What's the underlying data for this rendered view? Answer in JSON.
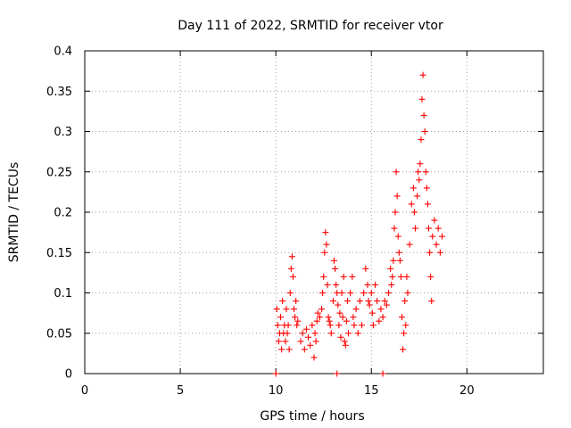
{
  "chart_data": {
    "type": "scatter",
    "title": "Day 111 of 2022, SRMTID for receiver vtor",
    "xlabel": "GPS time / hours",
    "ylabel": "SRMTID / TECUs",
    "xlim": [
      0,
      24
    ],
    "ylim": [
      0,
      0.4
    ],
    "xticks": [
      0,
      5,
      10,
      15,
      20
    ],
    "yticks": [
      0,
      0.05,
      0.1,
      0.15,
      0.2,
      0.25,
      0.3,
      0.35,
      0.4
    ],
    "xtick_labels": [
      "0",
      "5",
      "10",
      "15",
      "20"
    ],
    "ytick_labels": [
      "0",
      "0.05",
      "0.1",
      "0.15",
      "0.2",
      "0.25",
      "0.3",
      "0.35",
      "0.4"
    ],
    "grid": true,
    "marker": "+",
    "color": "#ff0000",
    "series": [
      {
        "name": "SRMTID",
        "points": [
          [
            10.0,
            0.0
          ],
          [
            13.2,
            0.0
          ],
          [
            15.6,
            0.0
          ],
          [
            10.05,
            0.08
          ],
          [
            10.1,
            0.06
          ],
          [
            10.15,
            0.04
          ],
          [
            10.2,
            0.05
          ],
          [
            10.25,
            0.07
          ],
          [
            10.3,
            0.03
          ],
          [
            10.35,
            0.09
          ],
          [
            10.4,
            0.05
          ],
          [
            10.45,
            0.06
          ],
          [
            10.5,
            0.04
          ],
          [
            10.55,
            0.08
          ],
          [
            10.6,
            0.05
          ],
          [
            10.65,
            0.06
          ],
          [
            10.7,
            0.03
          ],
          [
            10.75,
            0.1
          ],
          [
            10.8,
            0.13
          ],
          [
            10.85,
            0.145
          ],
          [
            10.9,
            0.12
          ],
          [
            10.95,
            0.08
          ],
          [
            11.0,
            0.07
          ],
          [
            11.05,
            0.09
          ],
          [
            11.1,
            0.06
          ],
          [
            11.15,
            0.065
          ],
          [
            11.3,
            0.04
          ],
          [
            11.4,
            0.05
          ],
          [
            11.5,
            0.03
          ],
          [
            11.6,
            0.055
          ],
          [
            11.7,
            0.045
          ],
          [
            11.8,
            0.035
          ],
          [
            11.9,
            0.06
          ],
          [
            12.0,
            0.02
          ],
          [
            12.05,
            0.05
          ],
          [
            12.1,
            0.04
          ],
          [
            12.15,
            0.065
          ],
          [
            12.2,
            0.075
          ],
          [
            12.3,
            0.07
          ],
          [
            12.4,
            0.08
          ],
          [
            12.45,
            0.1
          ],
          [
            12.5,
            0.12
          ],
          [
            12.55,
            0.15
          ],
          [
            12.6,
            0.175
          ],
          [
            12.65,
            0.16
          ],
          [
            12.7,
            0.11
          ],
          [
            12.75,
            0.07
          ],
          [
            12.8,
            0.065
          ],
          [
            12.85,
            0.06
          ],
          [
            12.9,
            0.05
          ],
          [
            13.0,
            0.09
          ],
          [
            13.05,
            0.14
          ],
          [
            13.1,
            0.13
          ],
          [
            13.15,
            0.11
          ],
          [
            13.2,
            0.1
          ],
          [
            13.25,
            0.085
          ],
          [
            13.3,
            0.06
          ],
          [
            13.35,
            0.075
          ],
          [
            13.4,
            0.045
          ],
          [
            13.45,
            0.1
          ],
          [
            13.5,
            0.07
          ],
          [
            13.55,
            0.12
          ],
          [
            13.6,
            0.04
          ],
          [
            13.65,
            0.035
          ],
          [
            13.7,
            0.065
          ],
          [
            13.75,
            0.09
          ],
          [
            13.8,
            0.05
          ],
          [
            13.9,
            0.1
          ],
          [
            14.0,
            0.12
          ],
          [
            14.05,
            0.07
          ],
          [
            14.1,
            0.06
          ],
          [
            14.2,
            0.08
          ],
          [
            14.3,
            0.05
          ],
          [
            14.4,
            0.09
          ],
          [
            14.5,
            0.06
          ],
          [
            14.6,
            0.1
          ],
          [
            14.7,
            0.13
          ],
          [
            14.8,
            0.11
          ],
          [
            14.85,
            0.09
          ],
          [
            14.9,
            0.085
          ],
          [
            15.0,
            0.1
          ],
          [
            15.05,
            0.075
          ],
          [
            15.1,
            0.06
          ],
          [
            15.2,
            0.11
          ],
          [
            15.3,
            0.09
          ],
          [
            15.4,
            0.065
          ],
          [
            15.5,
            0.08
          ],
          [
            15.6,
            0.07
          ],
          [
            15.7,
            0.09
          ],
          [
            15.8,
            0.085
          ],
          [
            15.9,
            0.1
          ],
          [
            16.0,
            0.13
          ],
          [
            16.05,
            0.11
          ],
          [
            16.1,
            0.12
          ],
          [
            16.15,
            0.14
          ],
          [
            16.2,
            0.18
          ],
          [
            16.25,
            0.2
          ],
          [
            16.3,
            0.25
          ],
          [
            16.35,
            0.22
          ],
          [
            16.4,
            0.17
          ],
          [
            16.45,
            0.15
          ],
          [
            16.5,
            0.14
          ],
          [
            16.55,
            0.12
          ],
          [
            16.6,
            0.07
          ],
          [
            16.65,
            0.03
          ],
          [
            16.7,
            0.05
          ],
          [
            16.75,
            0.09
          ],
          [
            16.8,
            0.06
          ],
          [
            16.85,
            0.12
          ],
          [
            16.9,
            0.1
          ],
          [
            17.0,
            0.16
          ],
          [
            17.1,
            0.21
          ],
          [
            17.2,
            0.23
          ],
          [
            17.25,
            0.2
          ],
          [
            17.3,
            0.18
          ],
          [
            17.4,
            0.22
          ],
          [
            17.45,
            0.25
          ],
          [
            17.5,
            0.24
          ],
          [
            17.55,
            0.26
          ],
          [
            17.6,
            0.29
          ],
          [
            17.65,
            0.34
          ],
          [
            17.7,
            0.37
          ],
          [
            17.75,
            0.32
          ],
          [
            17.8,
            0.3
          ],
          [
            17.85,
            0.25
          ],
          [
            17.9,
            0.23
          ],
          [
            17.95,
            0.21
          ],
          [
            18.0,
            0.18
          ],
          [
            18.05,
            0.15
          ],
          [
            18.1,
            0.12
          ],
          [
            18.15,
            0.09
          ],
          [
            18.2,
            0.17
          ],
          [
            18.3,
            0.19
          ],
          [
            18.4,
            0.16
          ],
          [
            18.5,
            0.18
          ],
          [
            18.6,
            0.15
          ],
          [
            18.7,
            0.17
          ]
        ]
      }
    ]
  }
}
